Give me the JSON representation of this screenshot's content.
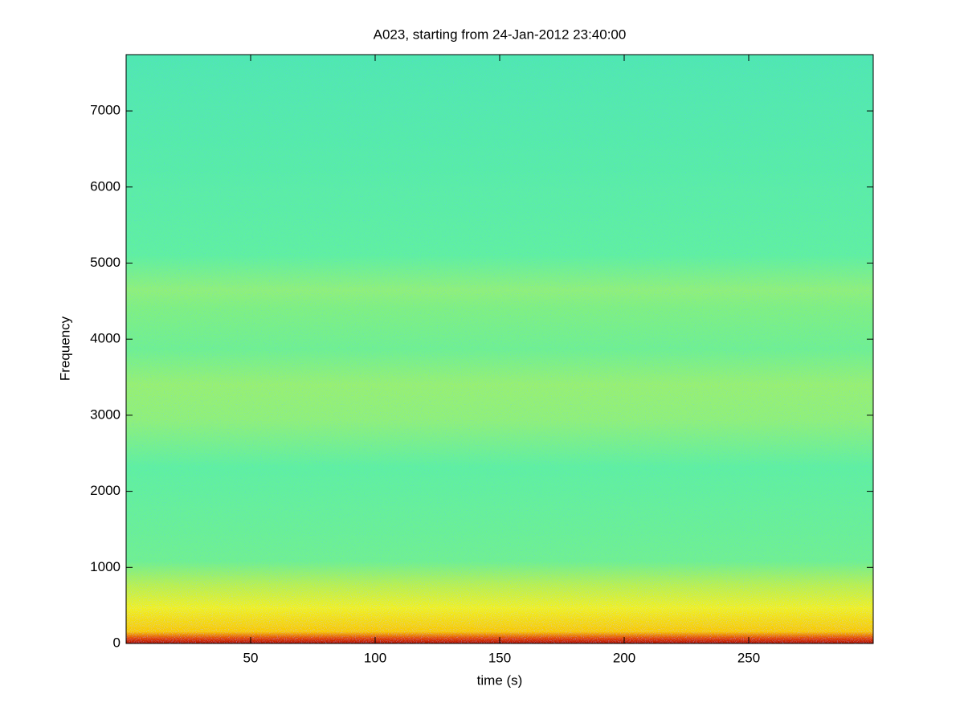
{
  "chart_data": {
    "type": "spectrogram",
    "title": "A023, starting from 24-Jan-2012 23:40:00",
    "xlabel": "time (s)",
    "ylabel": "Frequency",
    "xlim": [
      0,
      300
    ],
    "ylim": [
      0,
      7740
    ],
    "xticks": [
      50,
      100,
      150,
      200,
      250
    ],
    "yticks": [
      0,
      1000,
      2000,
      3000,
      4000,
      5000,
      6000,
      7000
    ],
    "colormap": "jet"
  }
}
